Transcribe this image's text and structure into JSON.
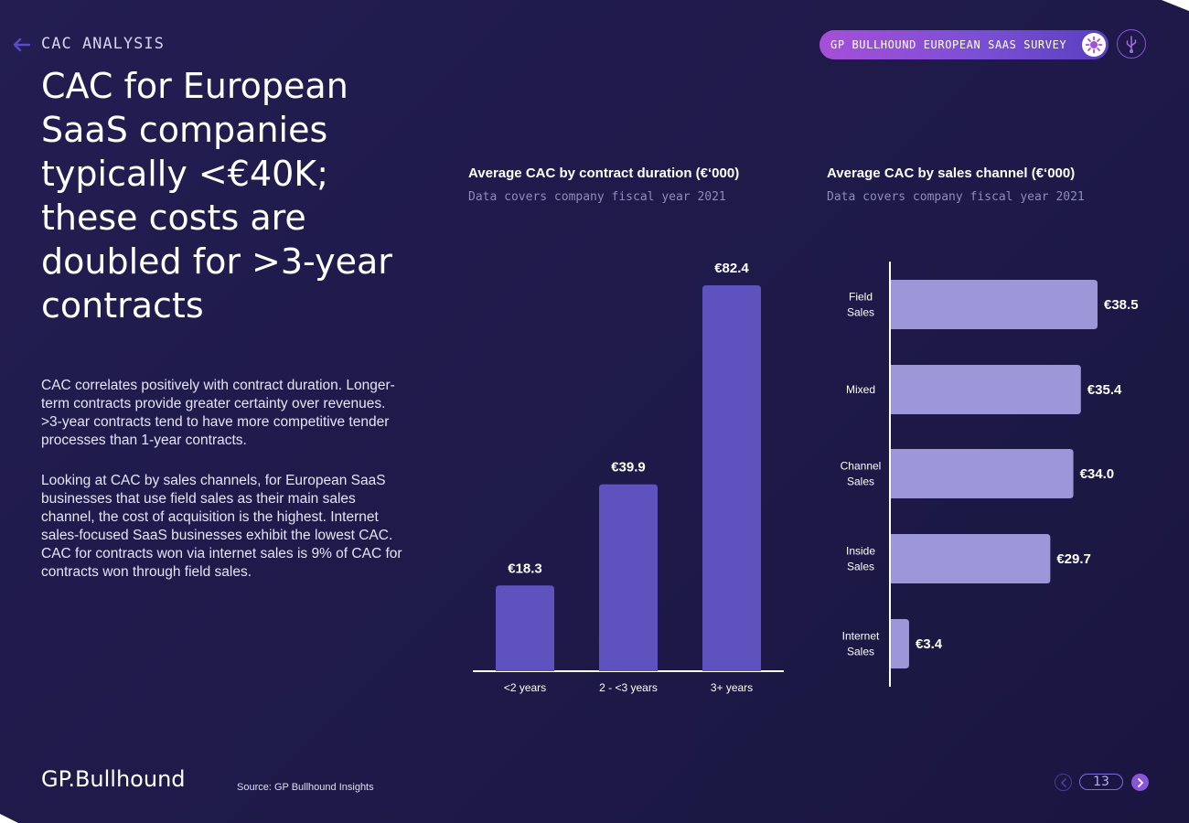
{
  "header": {
    "section": "CAC ANALYSIS",
    "survey_label": "GP BULLHOUND EUROPEAN SAAS SURVEY"
  },
  "headline": "CAC for European SaaS companies typically <€40K; these costs are doubled for >3-year contracts",
  "body": {
    "para1": "CAC correlates positively with contract duration. Longer-term contracts provide greater certainty over revenues. >3-year contracts tend to have more competitive tender processes than 1-year contracts.",
    "para2": "Looking at CAC by sales channels, for European SaaS businesses that use field sales as their main sales channel, the cost of acquisition is the highest. Internet sales-focused SaaS businesses exhibit the lowest CAC. CAC for contracts won via internet sales is 9% of CAC for contracts won through field sales."
  },
  "footer": {
    "logo": "GP.Bullhound",
    "source": "Source: GP Bullhound Insights",
    "page": "13"
  },
  "colors": {
    "bar_duration": "#5e52bf",
    "bar_channel": "#9d96d9"
  },
  "chart_data": [
    {
      "type": "bar",
      "orientation": "vertical",
      "title": "Average CAC by contract duration (€‘000)",
      "subtitle": "Data covers company fiscal year 2021",
      "categories": [
        "<2 years",
        "2 - <3 years",
        "3+ years"
      ],
      "values": [
        18.3,
        39.9,
        82.4
      ],
      "value_labels": [
        "€18.3",
        "€39.9",
        "€82.4"
      ],
      "xlabel": "",
      "ylabel": "",
      "ylim": [
        0,
        82.4
      ]
    },
    {
      "type": "bar",
      "orientation": "horizontal",
      "title": "Average CAC by sales channel (€‘000)",
      "subtitle": "Data covers company fiscal year 2021",
      "categories": [
        [
          "Field",
          "Sales"
        ],
        [
          "Mixed"
        ],
        [
          "Channel",
          "Sales"
        ],
        [
          "Inside",
          "Sales"
        ],
        [
          "Internet",
          "Sales"
        ]
      ],
      "values": [
        38.5,
        35.4,
        34.0,
        29.7,
        3.4
      ],
      "value_labels": [
        "€38.5",
        "€35.4",
        "€34.0",
        "€29.7",
        "€3.4"
      ],
      "xlabel": "",
      "ylabel": "",
      "xlim": [
        0,
        38.5
      ]
    }
  ]
}
